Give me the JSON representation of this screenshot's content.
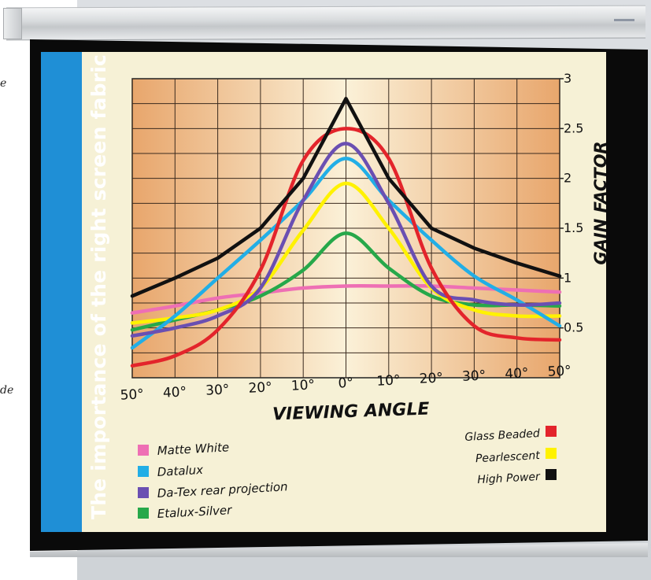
{
  "page": {
    "title": "The importance of the right screen fabric",
    "left_fragment_1": "e",
    "left_fragment_2": "de"
  },
  "colors": {
    "matte_white": "#ee6fb4",
    "datalux": "#22aee6",
    "datex": "#6a4fb2",
    "etalux": "#27a84a",
    "glass_beaded": "#e3242b",
    "pearlescent": "#fff200",
    "high_power": "#111111"
  },
  "chart_data": {
    "type": "line",
    "title": "",
    "xlabel": "VIEWING ANGLE",
    "ylabel": "GAIN FACTOR",
    "x_tick_labels": [
      "50°",
      "40°",
      "30°",
      "20°",
      "10°",
      "0°",
      "10°",
      "20°",
      "30°",
      "40°",
      "50°"
    ],
    "y_tick_labels": [
      "0.5",
      "1",
      "1.5",
      "2",
      "2.5",
      "3"
    ],
    "y_ticks": [
      0.5,
      1,
      1.5,
      2,
      2.5,
      3
    ],
    "x": [
      -50,
      -40,
      -30,
      -20,
      -10,
      0,
      10,
      20,
      30,
      40,
      50
    ],
    "xlim": [
      -50,
      50
    ],
    "ylim": [
      0,
      3
    ],
    "grid": true,
    "series": [
      {
        "name": "Matte White",
        "color": "#ee6fb4",
        "values": [
          0.65,
          0.72,
          0.8,
          0.85,
          0.9,
          0.92,
          0.92,
          0.92,
          0.9,
          0.88,
          0.86
        ]
      },
      {
        "name": "Datalux",
        "color": "#22aee6",
        "values": [
          0.3,
          0.62,
          1.0,
          1.38,
          1.78,
          2.2,
          1.78,
          1.38,
          1.02,
          0.78,
          0.52
        ]
      },
      {
        "name": "Da-Tex rear projection",
        "color": "#6a4fb2",
        "values": [
          0.42,
          0.5,
          0.62,
          0.9,
          1.78,
          2.35,
          1.75,
          0.92,
          0.78,
          0.73,
          0.75
        ]
      },
      {
        "name": "Etalux-Silver",
        "color": "#27a84a",
        "values": [
          0.48,
          0.58,
          0.68,
          0.82,
          1.08,
          1.45,
          1.1,
          0.82,
          0.73,
          0.73,
          0.72
        ]
      },
      {
        "name": "Glass Beaded",
        "color": "#e3242b",
        "values": [
          0.12,
          0.22,
          0.48,
          1.08,
          2.18,
          2.5,
          2.2,
          1.1,
          0.52,
          0.4,
          0.38
        ]
      },
      {
        "name": "Pearlescent",
        "color": "#fff200",
        "values": [
          0.55,
          0.6,
          0.68,
          0.9,
          1.48,
          1.95,
          1.5,
          0.9,
          0.68,
          0.62,
          0.62
        ]
      },
      {
        "name": "High Power",
        "color": "#111111",
        "values": [
          0.82,
          1.0,
          1.2,
          1.5,
          2.0,
          2.8,
          2.0,
          1.5,
          1.3,
          1.15,
          1.02
        ]
      }
    ],
    "legend": {
      "left": [
        {
          "label": "Matte White",
          "color": "#ee6fb4"
        },
        {
          "label": "Datalux",
          "color": "#22aee6"
        },
        {
          "label": "Da-Tex rear projection",
          "color": "#6a4fb2"
        },
        {
          "label": "Etalux-Silver",
          "color": "#27a84a"
        }
      ],
      "right": [
        {
          "label": "Glass Beaded",
          "color": "#e3242b"
        },
        {
          "label": "Pearlescent",
          "color": "#fff200"
        },
        {
          "label": "High Power",
          "color": "#111111"
        }
      ]
    }
  }
}
